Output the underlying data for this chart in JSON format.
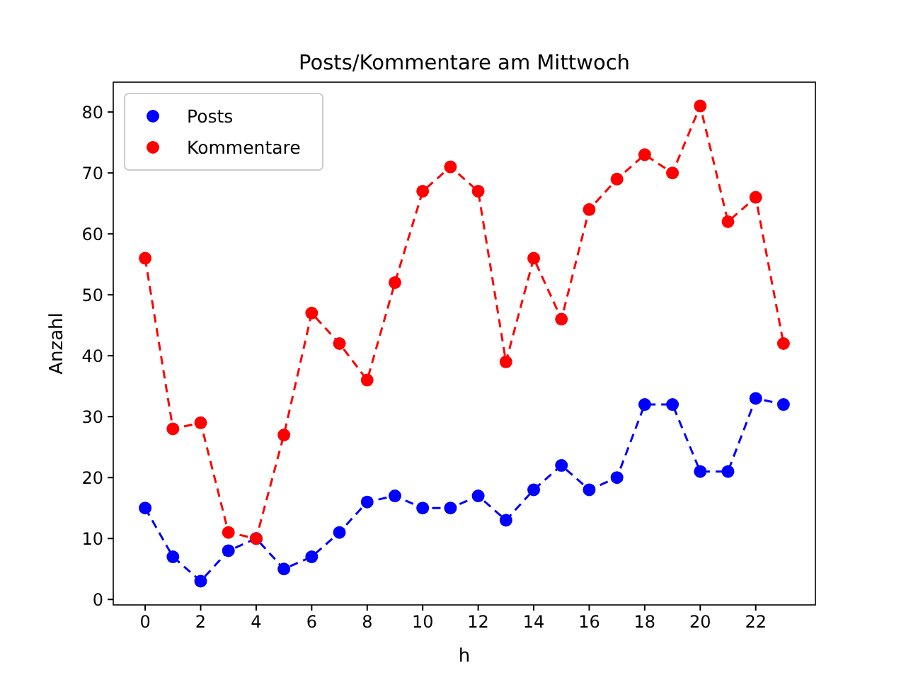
{
  "chart_data": {
    "type": "line",
    "title": "Posts/Kommentare am Mittwoch",
    "xlabel": "h",
    "ylabel": "Anzahl",
    "x": [
      0,
      1,
      2,
      3,
      4,
      5,
      6,
      7,
      8,
      9,
      10,
      11,
      12,
      13,
      14,
      15,
      16,
      17,
      18,
      19,
      20,
      21,
      22,
      23
    ],
    "series": [
      {
        "name": "Posts",
        "color": "#0000ff",
        "values": [
          15,
          7,
          3,
          8,
          10,
          5,
          7,
          11,
          16,
          17,
          15,
          15,
          17,
          13,
          18,
          22,
          18,
          20,
          32,
          32,
          21,
          21,
          33,
          32
        ]
      },
      {
        "name": "Kommentare",
        "color": "#ff0000",
        "values": [
          56,
          28,
          29,
          11,
          10,
          27,
          47,
          42,
          36,
          52,
          67,
          71,
          67,
          39,
          56,
          46,
          64,
          69,
          73,
          70,
          81,
          62,
          66,
          42
        ]
      }
    ],
    "xlim": [
      -1.15,
      24.15
    ],
    "ylim": [
      -0.9,
      84.9
    ],
    "xticks": [
      0,
      2,
      4,
      6,
      8,
      10,
      12,
      14,
      16,
      18,
      20,
      22
    ],
    "yticks": [
      0,
      10,
      20,
      30,
      40,
      50,
      60,
      70,
      80
    ],
    "legend": "top left",
    "marker": "circle",
    "line_style": "dashed",
    "grid": false
  }
}
